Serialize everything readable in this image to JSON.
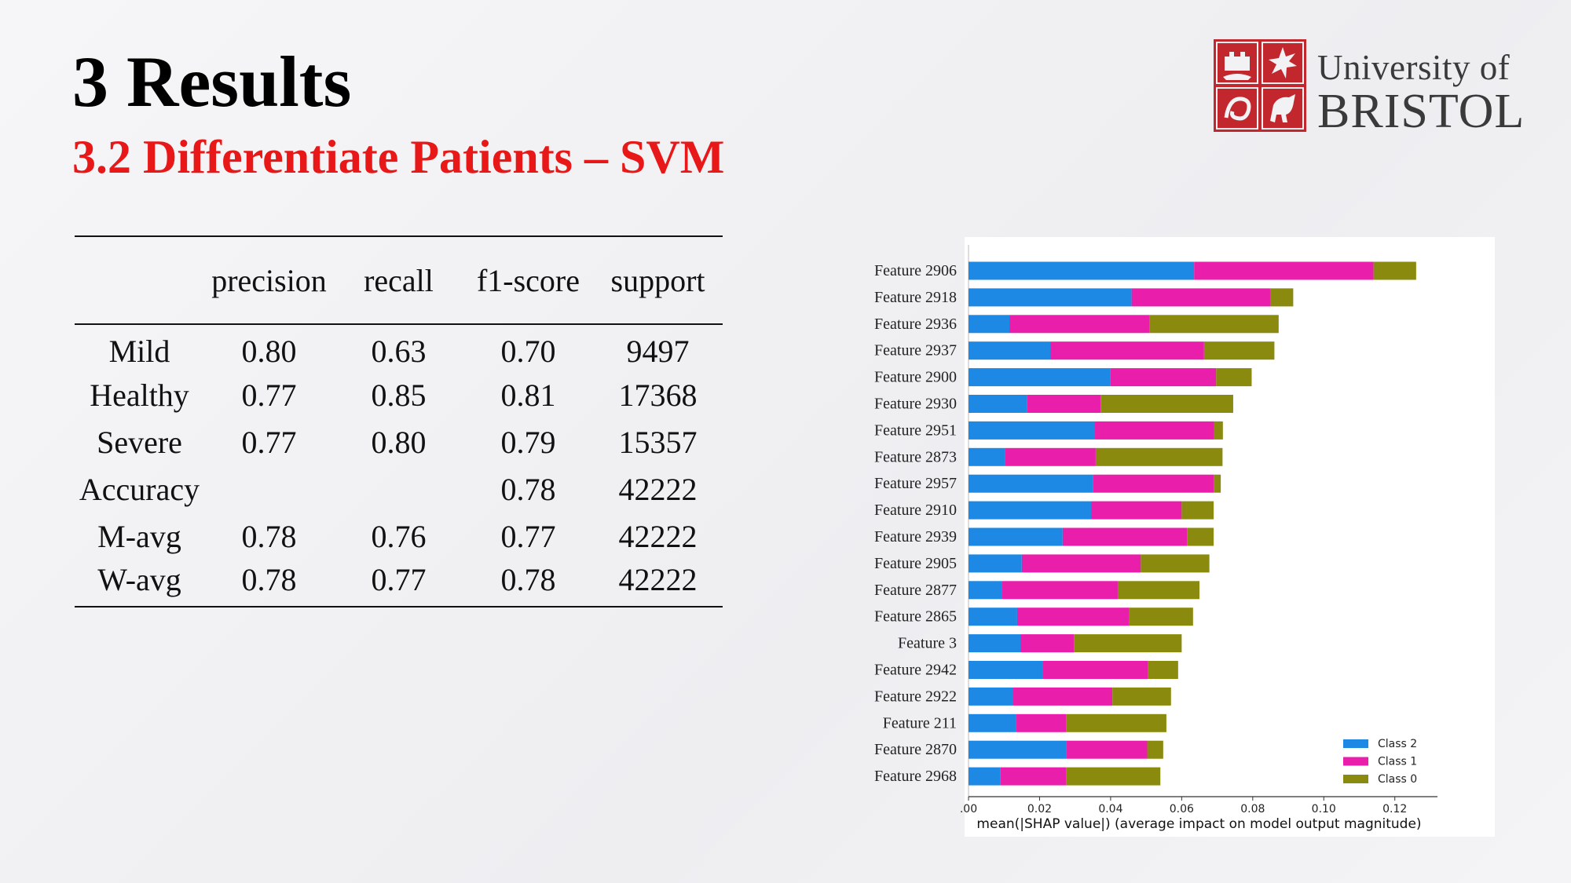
{
  "slide": {
    "title": "3 Results",
    "subtitle": "3.2 Differentiate Patients – SVM"
  },
  "logo": {
    "line1": "University of",
    "line2": "BRISTOL",
    "color": "#c1272d"
  },
  "table": {
    "headers": [
      "",
      "precision",
      "recall",
      "f1-score",
      "support"
    ],
    "rows": [
      [
        "Mild",
        "0.80",
        "0.63",
        "0.70",
        "9497"
      ],
      [
        "Healthy",
        "0.77",
        "0.85",
        "0.81",
        "17368"
      ],
      [
        "Severe",
        "0.77",
        "0.80",
        "0.79",
        "15357"
      ],
      [
        "Accuracy",
        "",
        "",
        "0.78",
        "42222"
      ],
      [
        "M-avg",
        "0.78",
        "0.76",
        "0.77",
        "42222"
      ],
      [
        "W-avg",
        "0.78",
        "0.77",
        "0.78",
        "42222"
      ]
    ]
  },
  "chart_data": {
    "type": "bar",
    "orientation": "horizontal",
    "stacked": true,
    "title": "",
    "xlabel": "mean(|SHAP value|) (average impact on model output magnitude)",
    "ylabel": "",
    "xlim": [
      0,
      0.132
    ],
    "xticks": [
      ".00",
      "0.02",
      "0.04",
      "0.06",
      "0.08",
      "0.10",
      "0.12"
    ],
    "grid": false,
    "legend_position": "bottom-right",
    "categories": [
      "Feature 2906",
      "Feature 2918",
      "Feature 2936",
      "Feature 2937",
      "Feature 2900",
      "Feature 2930",
      "Feature 2951",
      "Feature 2873",
      "Feature 2957",
      "Feature 2910",
      "Feature 2939",
      "Feature 2905",
      "Feature 2877",
      "Feature 2865",
      "Feature 3",
      "Feature 2942",
      "Feature 2922",
      "Feature 211",
      "Feature 2870",
      "Feature 2968"
    ],
    "series": [
      {
        "name": "Class 2",
        "color": "#1e88e5",
        "values": [
          0.0635,
          0.0459,
          0.0115,
          0.023,
          0.04,
          0.0165,
          0.0356,
          0.0102,
          0.035,
          0.0345,
          0.0265,
          0.015,
          0.0095,
          0.0137,
          0.0146,
          0.021,
          0.0125,
          0.0133,
          0.0275,
          0.009
        ]
      },
      {
        "name": "Class 1",
        "color": "#e91eab",
        "values": [
          0.0505,
          0.039,
          0.0395,
          0.0433,
          0.0297,
          0.0207,
          0.0335,
          0.0256,
          0.034,
          0.0255,
          0.035,
          0.0335,
          0.0325,
          0.0315,
          0.0151,
          0.0295,
          0.028,
          0.0142,
          0.0228,
          0.0185
        ]
      },
      {
        "name": "Class 0",
        "color": "#8a8a0e",
        "values": [
          0.012,
          0.0065,
          0.0363,
          0.0198,
          0.01,
          0.0373,
          0.0025,
          0.0357,
          0.002,
          0.009,
          0.0075,
          0.0193,
          0.023,
          0.018,
          0.0303,
          0.0085,
          0.0165,
          0.0282,
          0.0045,
          0.0265
        ]
      }
    ]
  }
}
